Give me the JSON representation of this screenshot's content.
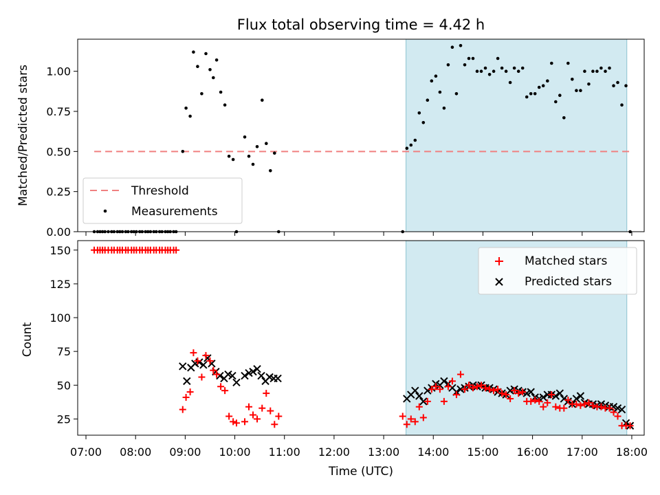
{
  "chart_data": [
    {
      "type": "scatter",
      "panel": "top",
      "title": "Flux total observing time = 4.42 h",
      "ylabel": "Matched/Predicted stars",
      "ylim": [
        0,
        1.2
      ],
      "yticks": [
        0.0,
        0.25,
        0.5,
        0.75,
        1.0
      ],
      "ytick_labels": [
        "0.00",
        "0.25",
        "0.50",
        "0.75",
        "1.00"
      ],
      "xlim": [
        "06:50",
        "18:15"
      ],
      "legend": {
        "placement": "lower-left",
        "threshold_label": "Threshold",
        "measurements_label": "Measurements"
      },
      "threshold": {
        "name": "Threshold",
        "value": 0.5,
        "x_start": "07:10",
        "x_end": "18:00",
        "color": "#f08080"
      },
      "span": {
        "start": "13:27",
        "end": "17:54",
        "color": "#add8e6"
      },
      "series": [
        {
          "name": "Measurements",
          "color": "#000000",
          "x": [
            "07:10",
            "07:14",
            "07:17",
            "07:20",
            "07:23",
            "07:27",
            "07:31",
            "07:34",
            "07:38",
            "07:41",
            "07:44",
            "07:48",
            "07:51",
            "07:55",
            "07:58",
            "08:01",
            "08:05",
            "08:08",
            "08:12",
            "08:15",
            "08:18",
            "08:22",
            "08:25",
            "08:29",
            "08:32",
            "08:36",
            "08:39",
            "08:42",
            "08:46",
            "08:49",
            "08:57",
            "09:01",
            "09:06",
            "09:10",
            "09:15",
            "09:20",
            "09:25",
            "09:30",
            "09:34",
            "09:38",
            "09:43",
            "09:48",
            "09:53",
            "09:58",
            "10:02",
            "10:12",
            "10:17",
            "10:22",
            "10:27",
            "10:33",
            "10:38",
            "10:43",
            "10:48",
            "10:53",
            "13:23",
            "13:28",
            "13:33",
            "13:38",
            "13:43",
            "13:48",
            "13:53",
            "13:58",
            "14:03",
            "14:08",
            "14:13",
            "14:18",
            "14:23",
            "14:28",
            "14:33",
            "14:38",
            "14:43",
            "14:48",
            "14:53",
            "14:58",
            "15:03",
            "15:08",
            "15:13",
            "15:18",
            "15:23",
            "15:28",
            "15:33",
            "15:38",
            "15:43",
            "15:48",
            "15:53",
            "15:58",
            "16:03",
            "16:08",
            "16:13",
            "16:18",
            "16:23",
            "16:28",
            "16:33",
            "16:38",
            "16:43",
            "16:48",
            "16:53",
            "16:58",
            "17:03",
            "17:08",
            "17:13",
            "17:18",
            "17:23",
            "17:28",
            "17:33",
            "17:38",
            "17:43",
            "17:48",
            "17:53",
            "17:58"
          ],
          "y": [
            0,
            0,
            0,
            0,
            0,
            0,
            0,
            0,
            0,
            0,
            0,
            0,
            0,
            0,
            0,
            0,
            0,
            0,
            0,
            0,
            0,
            0,
            0,
            0,
            0,
            0,
            0,
            0,
            0,
            0,
            0.5,
            0.77,
            0.72,
            1.12,
            1.03,
            0.86,
            1.11,
            1.01,
            0.96,
            1.07,
            0.87,
            0.79,
            0.47,
            0.45,
            0,
            0.59,
            0.47,
            0.42,
            0.53,
            0.82,
            0.55,
            0.38,
            0.49,
            0,
            0,
            0.52,
            0.54,
            0.57,
            0.74,
            0.68,
            0.82,
            0.94,
            0.97,
            0.87,
            0.77,
            1.04,
            1.15,
            0.86,
            1.16,
            1.04,
            1.08,
            1.08,
            1.0,
            1.0,
            1.02,
            0.98,
            1.0,
            1.08,
            1.02,
            1.0,
            0.93,
            1.02,
            1.0,
            1.02,
            0.84,
            0.86,
            0.86,
            0.9,
            0.91,
            0.94,
            1.05,
            0.81,
            0.85,
            0.71,
            1.05,
            0.95,
            0.88,
            0.88,
            1.0,
            0.92,
            1.0,
            1.0,
            1.02,
            1.0,
            1.02,
            0.91,
            0.93,
            0.79,
            0.91,
            0
          ]
        }
      ]
    },
    {
      "type": "scatter",
      "panel": "bottom",
      "ylabel": "Count",
      "xlabel": "Time (UTC)",
      "ylim": [
        13,
        157
      ],
      "yticks": [
        25,
        50,
        75,
        100,
        125,
        150
      ],
      "ytick_labels": [
        "25",
        "50",
        "75",
        "100",
        "125",
        "150"
      ],
      "xlim": [
        "06:50",
        "18:15"
      ],
      "xticks": [
        "07:00",
        "08:00",
        "09:00",
        "10:00",
        "11:00",
        "12:00",
        "13:00",
        "14:00",
        "15:00",
        "16:00",
        "17:00",
        "18:00"
      ],
      "xtick_labels": [
        "07:00",
        "08:00",
        "09:00",
        "10:00",
        "11:00",
        "12:00",
        "13:00",
        "14:00",
        "15:00",
        "16:00",
        "17:00",
        "18:00"
      ],
      "legend": {
        "placement": "top-right",
        "matched_label": "Matched stars",
        "predicted_label": "Predicted stars"
      },
      "span": {
        "start": "13:27",
        "end": "17:54",
        "color": "#add8e6"
      },
      "series": [
        {
          "name": "Matched stars",
          "marker": "+",
          "color": "#ff0000",
          "x": [
            "07:10",
            "07:14",
            "07:17",
            "07:20",
            "07:23",
            "07:27",
            "07:31",
            "07:34",
            "07:38",
            "07:41",
            "07:44",
            "07:48",
            "07:51",
            "07:55",
            "07:58",
            "08:01",
            "08:05",
            "08:08",
            "08:12",
            "08:15",
            "08:18",
            "08:22",
            "08:25",
            "08:29",
            "08:32",
            "08:36",
            "08:39",
            "08:42",
            "08:46",
            "08:49",
            "08:57",
            "09:01",
            "09:06",
            "09:10",
            "09:15",
            "09:20",
            "09:25",
            "09:30",
            "09:34",
            "09:38",
            "09:43",
            "09:48",
            "09:53",
            "09:58",
            "10:02",
            "10:12",
            "10:17",
            "10:22",
            "10:27",
            "10:33",
            "10:38",
            "10:43",
            "10:48",
            "10:53",
            "13:23",
            "13:28",
            "13:33",
            "13:38",
            "13:43",
            "13:48",
            "13:53",
            "13:58",
            "14:03",
            "14:08",
            "14:13",
            "14:18",
            "14:23",
            "14:28",
            "14:33",
            "14:38",
            "14:43",
            "14:48",
            "14:53",
            "14:58",
            "15:03",
            "15:08",
            "15:13",
            "15:18",
            "15:23",
            "15:28",
            "15:33",
            "15:38",
            "15:43",
            "15:48",
            "15:53",
            "15:58",
            "16:03",
            "16:08",
            "16:13",
            "16:18",
            "16:23",
            "16:28",
            "16:33",
            "16:38",
            "16:43",
            "16:48",
            "16:53",
            "16:58",
            "17:03",
            "17:08",
            "17:13",
            "17:18",
            "17:23",
            "17:28",
            "17:33",
            "17:38",
            "17:43",
            "17:48",
            "17:53",
            "17:58"
          ],
          "y": [
            150,
            150,
            150,
            150,
            150,
            150,
            150,
            150,
            150,
            150,
            150,
            150,
            150,
            150,
            150,
            150,
            150,
            150,
            150,
            150,
            150,
            150,
            150,
            150,
            150,
            150,
            150,
            150,
            150,
            150,
            32,
            41,
            45,
            74,
            68,
            56,
            72,
            68,
            61,
            58,
            49,
            46,
            27,
            23,
            22,
            23,
            34,
            28,
            25,
            33,
            44,
            31,
            21,
            27,
            27,
            21,
            25,
            23,
            34,
            26,
            38,
            47,
            49,
            47,
            38,
            49,
            53,
            43,
            58,
            47,
            50,
            48,
            49,
            50,
            48,
            47,
            46,
            47,
            44,
            43,
            40,
            46,
            44,
            45,
            38,
            38,
            39,
            38,
            34,
            37,
            43,
            34,
            33,
            33,
            39,
            36,
            36,
            35,
            36,
            37,
            35,
            34,
            34,
            33,
            33,
            30,
            27,
            20,
            20,
            20
          ]
        },
        {
          "name": "Predicted stars",
          "marker": "x",
          "color": "#000000",
          "x": [
            "08:57",
            "09:02",
            "09:07",
            "09:12",
            "09:17",
            "09:22",
            "09:27",
            "09:32",
            "09:37",
            "09:42",
            "09:47",
            "09:52",
            "09:57",
            "10:02",
            "10:12",
            "10:17",
            "10:22",
            "10:27",
            "10:32",
            "10:37",
            "10:42",
            "10:47",
            "10:52",
            "13:28",
            "13:33",
            "13:38",
            "13:43",
            "13:48",
            "13:53",
            "13:58",
            "14:03",
            "14:08",
            "14:13",
            "14:18",
            "14:23",
            "14:28",
            "14:33",
            "14:38",
            "14:43",
            "14:48",
            "14:53",
            "14:58",
            "15:03",
            "15:08",
            "15:13",
            "15:18",
            "15:23",
            "15:28",
            "15:33",
            "15:38",
            "15:43",
            "15:48",
            "15:53",
            "15:58",
            "16:03",
            "16:08",
            "16:13",
            "16:18",
            "16:23",
            "16:28",
            "16:33",
            "16:38",
            "16:43",
            "16:48",
            "16:53",
            "16:58",
            "17:03",
            "17:08",
            "17:13",
            "17:18",
            "17:23",
            "17:28",
            "17:33",
            "17:38",
            "17:43",
            "17:48",
            "17:53",
            "17:58"
          ],
          "y": [
            64,
            53,
            63,
            66,
            67,
            65,
            70,
            66,
            60,
            57,
            55,
            58,
            57,
            52,
            57,
            59,
            60,
            62,
            57,
            53,
            56,
            55,
            55,
            40,
            43,
            46,
            42,
            38,
            46,
            48,
            51,
            50,
            53,
            51,
            48,
            45,
            47,
            48,
            49,
            50,
            49,
            50,
            48,
            48,
            47,
            45,
            44,
            43,
            46,
            47,
            46,
            45,
            44,
            45,
            41,
            40,
            41,
            43,
            43,
            42,
            44,
            40,
            38,
            36,
            40,
            42,
            37,
            36,
            36,
            35,
            36,
            35,
            34,
            34,
            33,
            32,
            22,
            20
          ]
        }
      ]
    }
  ]
}
